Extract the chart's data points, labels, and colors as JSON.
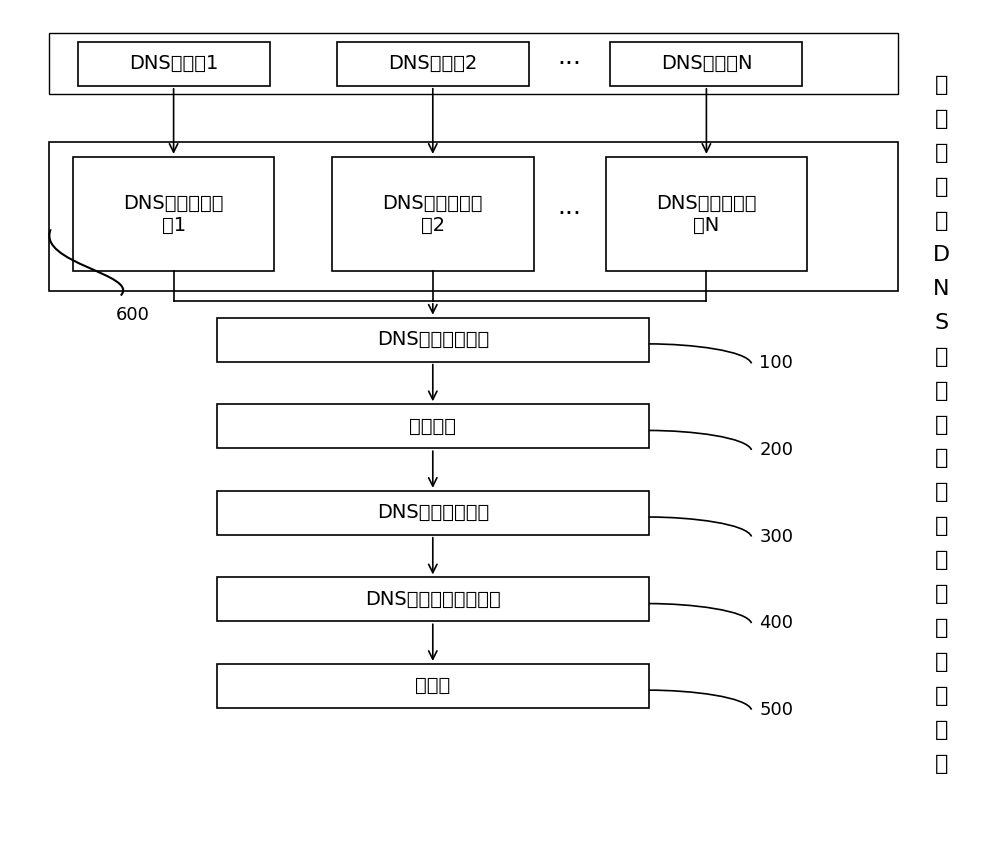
{
  "background_color": "#ffffff",
  "top_servers": [
    "DNS服务器1",
    "DNS服务器2",
    "DNS服务器N"
  ],
  "collection_modules": [
    "DNS数据采集模\n块1",
    "DNS数据采集模\n块2",
    "DNS数据采集模\n块N"
  ],
  "flow_boxes": [
    {
      "label": "DNS数据汇总中心",
      "tag": "100"
    },
    {
      "label": "云服务器",
      "tag": "200"
    },
    {
      "label": "DNS日志处理中心",
      "tag": "300"
    },
    {
      "label": "DNS日志统计分析中心",
      "tag": "400"
    },
    {
      "label": "数据库",
      "tag": "500"
    }
  ],
  "tag_600": "600",
  "side_chars": [
    "用",
    "于",
    "对",
    "海",
    "量",
    "D",
    "N",
    "S",
    "日",
    "志",
    "进",
    "行",
    "多",
    "维",
    "统",
    "计",
    "分",
    "析",
    "的",
    "系",
    "统"
  ],
  "line_color": "#000000",
  "box_edge_color": "#000000",
  "font_color": "#000000",
  "font_size_main": 14,
  "font_size_tag": 13,
  "font_size_side": 16
}
